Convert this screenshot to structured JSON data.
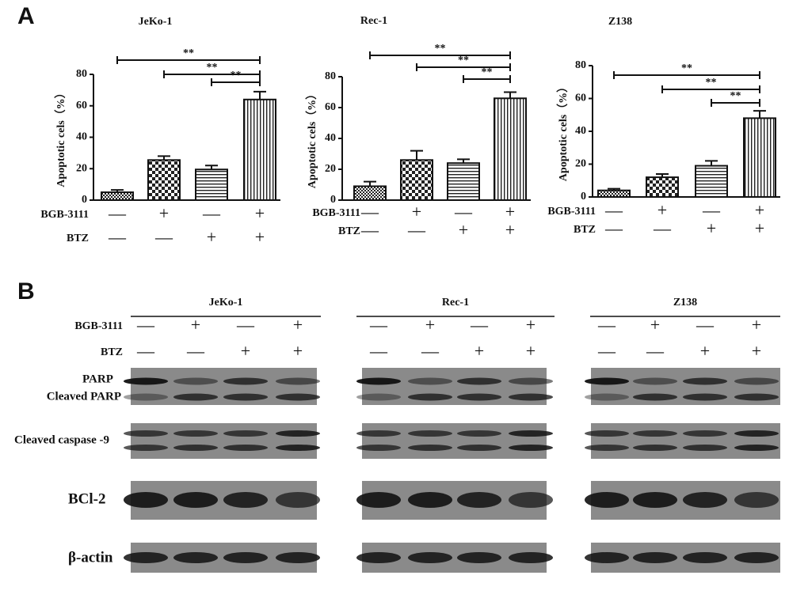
{
  "panel_labels": [
    "A",
    "B"
  ],
  "chart_data": [
    {
      "type": "bar",
      "title": "JeKo-1",
      "y_label": "Apoptotic cels（%）",
      "values": [
        5,
        25.5,
        19.5,
        64
      ],
      "errors": [
        1.5,
        2.5,
        2.5,
        5
      ],
      "patterns": [
        "dots",
        "checker",
        "hlines",
        "vlines"
      ],
      "ylim": [
        0,
        80
      ],
      "yticks": [
        0,
        20,
        40,
        60,
        80
      ],
      "treatments": [
        {
          "name": "BGB-3111",
          "marks": [
            "—",
            "+",
            "—",
            "+"
          ]
        },
        {
          "name": "BTZ",
          "marks": [
            "—",
            "—",
            "+",
            "+"
          ]
        }
      ],
      "annotations": [
        {
          "text": "**",
          "from": 2,
          "to": 3
        },
        {
          "text": "**",
          "from": 1,
          "to": 3
        },
        {
          "text": "**",
          "from": 0,
          "to": 3
        }
      ]
    },
    {
      "type": "bar",
      "title": "Rec-1",
      "y_label": "Apoptotic cels（%）",
      "values": [
        9,
        26,
        24,
        66
      ],
      "errors": [
        3,
        6,
        2.5,
        4
      ],
      "patterns": [
        "dots",
        "checker",
        "hlines",
        "vlines"
      ],
      "ylim": [
        0,
        80
      ],
      "yticks": [
        0,
        20,
        40,
        60,
        80
      ],
      "treatments": [
        {
          "name": "BGB-3111",
          "marks": [
            "—",
            "+",
            "—",
            "+"
          ]
        },
        {
          "name": "BTZ",
          "marks": [
            "—",
            "—",
            "+",
            "+"
          ]
        }
      ],
      "annotations": [
        {
          "text": "**",
          "from": 2,
          "to": 3
        },
        {
          "text": "**",
          "from": 1,
          "to": 3
        },
        {
          "text": "**",
          "from": 0,
          "to": 3
        }
      ]
    },
    {
      "type": "bar",
      "title": "Z138",
      "y_label": "Apoptotic cels（%）",
      "values": [
        4,
        12,
        19,
        48
      ],
      "errors": [
        1,
        2,
        3,
        4.5
      ],
      "patterns": [
        "dots",
        "checker",
        "hlines",
        "vlines"
      ],
      "ylim": [
        0,
        80
      ],
      "yticks": [
        0,
        20,
        40,
        60,
        80
      ],
      "treatments": [
        {
          "name": "BGB-3111",
          "marks": [
            "—",
            "+",
            "—",
            "+"
          ]
        },
        {
          "name": "BTZ",
          "marks": [
            "—",
            "—",
            "+",
            "+"
          ]
        }
      ],
      "annotations": [
        {
          "text": "**",
          "from": 2,
          "to": 3
        },
        {
          "text": "**",
          "from": 1,
          "to": 3
        },
        {
          "text": "**",
          "from": 0,
          "to": 3
        }
      ]
    }
  ],
  "western_blot": {
    "treatment_names": [
      "BGB-3111",
      "BTZ"
    ],
    "groups": [
      {
        "title": "JeKo-1",
        "marks": [
          [
            "—",
            "+",
            "—",
            "+"
          ],
          [
            "—",
            "—",
            "+",
            "+"
          ]
        ]
      },
      {
        "title": "Rec-1",
        "marks": [
          [
            "—",
            "+",
            "—",
            "+"
          ],
          [
            "—",
            "—",
            "+",
            "+"
          ]
        ]
      },
      {
        "title": "Z138",
        "marks": [
          [
            "—",
            "+",
            "—",
            "+"
          ],
          [
            "—",
            "—",
            "+",
            "+"
          ]
        ]
      }
    ],
    "blot_labels": [
      "PARP",
      "Cleaved PARP",
      "Cleaved caspase -9",
      "BCl-2",
      "β-actin"
    ]
  }
}
